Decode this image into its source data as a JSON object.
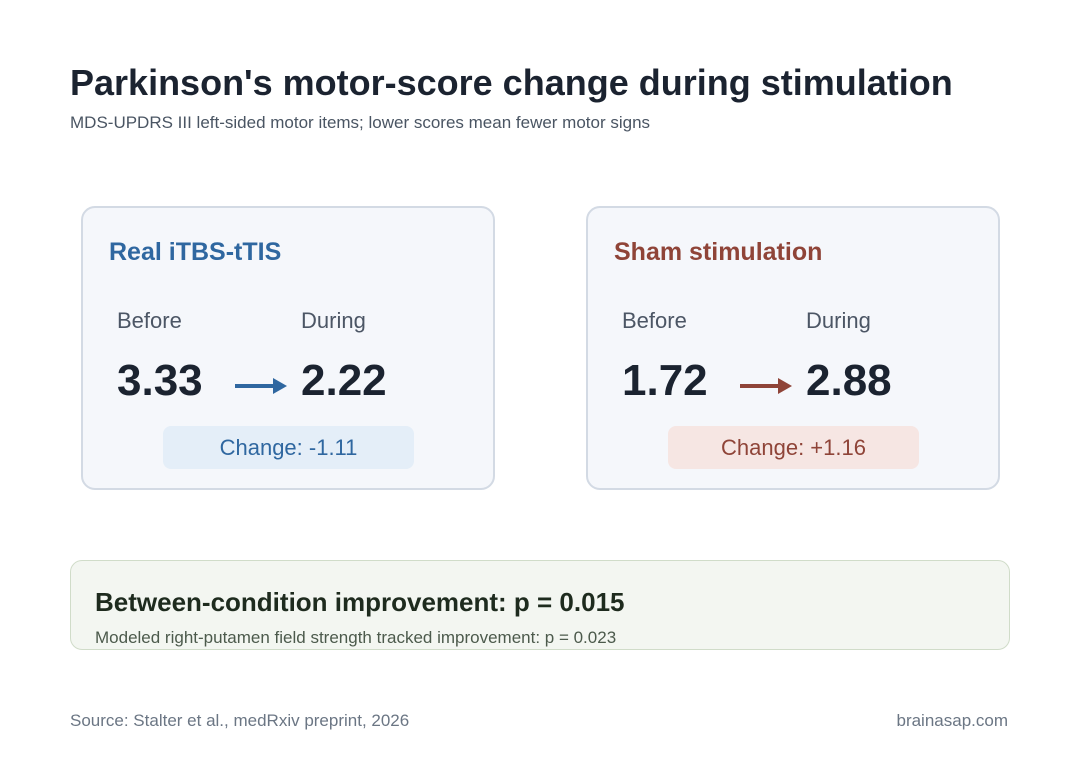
{
  "title": "Parkinson's motor-score change during stimulation",
  "subtitle": "MDS-UPDRS III left-sided motor items; lower scores mean fewer motor signs",
  "cards": [
    {
      "title": "Real iTBS-tTIS",
      "before_label": "Before",
      "during_label": "During",
      "before_value": "3.33",
      "during_value": "2.22",
      "change": "Change: -1.11",
      "accent": "#2f67a0"
    },
    {
      "title": "Sham stimulation",
      "before_label": "Before",
      "during_label": "During",
      "before_value": "1.72",
      "during_value": "2.88",
      "change": "Change: +1.16",
      "accent": "#8f4438"
    }
  ],
  "stats": {
    "main": "Between-condition improvement: p = 0.015",
    "sub": "Modeled right-putamen field strength tracked improvement: p = 0.023"
  },
  "footer": {
    "source": "Source: Stalter et al., medRxiv preprint, 2026",
    "brand": "brainasap.com"
  },
  "icons": {
    "arrow": "arrow-right-icon"
  }
}
